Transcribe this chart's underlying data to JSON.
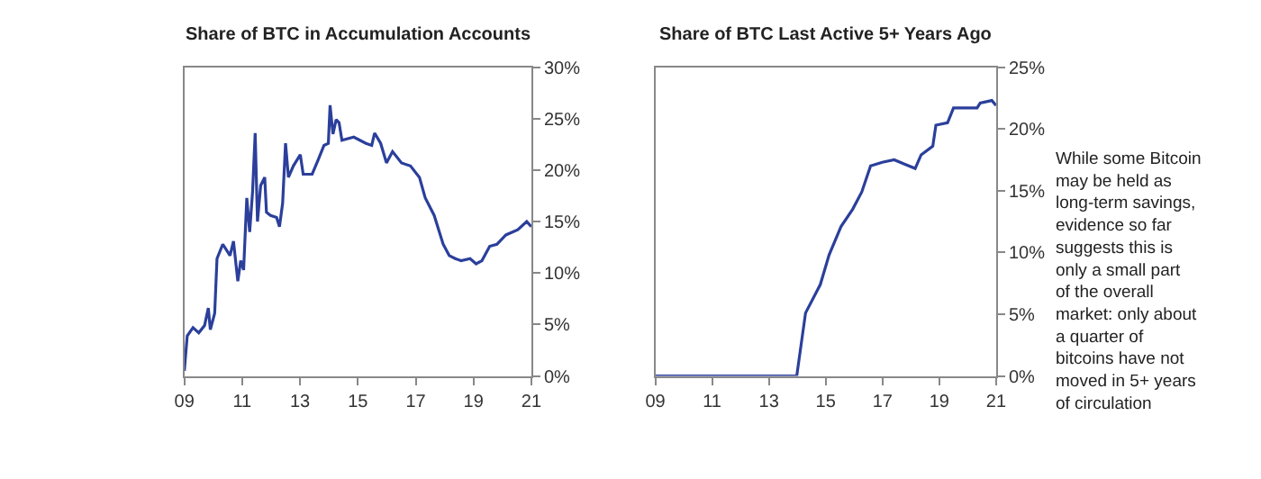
{
  "chart_data": [
    {
      "type": "line",
      "title": "Share of BTC in Accumulation Accounts",
      "x": [
        2009.0,
        2009.1,
        2009.3,
        2009.5,
        2009.7,
        2009.83,
        2009.9,
        2010.05,
        2010.13,
        2010.33,
        2010.58,
        2010.7,
        2010.85,
        2010.95,
        2011.05,
        2011.16,
        2011.26,
        2011.36,
        2011.45,
        2011.53,
        2011.64,
        2011.78,
        2011.84,
        2011.98,
        2012.19,
        2012.29,
        2012.4,
        2012.5,
        2012.6,
        2012.77,
        2013.01,
        2013.11,
        2013.42,
        2013.63,
        2013.83,
        2013.98,
        2014.04,
        2014.14,
        2014.25,
        2014.35,
        2014.45,
        2014.86,
        2015.28,
        2015.48,
        2015.58,
        2015.79,
        2015.99,
        2016.2,
        2016.51,
        2016.82,
        2017.13,
        2017.33,
        2017.64,
        2017.95,
        2018.16,
        2018.37,
        2018.57,
        2018.88,
        2019.09,
        2019.29,
        2019.56,
        2019.81,
        2020.12,
        2020.53,
        2020.84,
        2021.0
      ],
      "series": [
        {
          "color": "#2b3f9b",
          "values": [
            0.5,
            3.9,
            4.7,
            4.2,
            4.9,
            6.6,
            4.5,
            6.1,
            11.4,
            12.8,
            11.7,
            13.1,
            9.2,
            11.2,
            10.3,
            17.3,
            14.0,
            17.9,
            23.6,
            15.0,
            18.5,
            19.3,
            15.9,
            15.6,
            15.4,
            14.5,
            16.8,
            22.6,
            19.3,
            20.4,
            21.5,
            19.6,
            19.6,
            21.0,
            22.4,
            22.6,
            26.3,
            23.5,
            24.9,
            24.6,
            22.9,
            23.2,
            22.6,
            22.4,
            23.6,
            22.6,
            20.7,
            21.8,
            20.7,
            20.4,
            19.3,
            17.3,
            15.6,
            12.8,
            11.7,
            11.4,
            11.2,
            11.4,
            10.9,
            11.2,
            12.6,
            12.8,
            13.7,
            14.2,
            15.0,
            14.5
          ]
        }
      ],
      "xlim": [
        2009,
        2021
      ],
      "xticks": [
        {
          "value": 2009,
          "label": "09"
        },
        {
          "value": 2011,
          "label": "11"
        },
        {
          "value": 2013,
          "label": "13"
        },
        {
          "value": 2015,
          "label": "15"
        },
        {
          "value": 2017,
          "label": "17"
        },
        {
          "value": 2019,
          "label": "19"
        },
        {
          "value": 2021,
          "label": "21"
        }
      ],
      "ylim": [
        0,
        30
      ],
      "yticks": [
        {
          "value": 0,
          "label": "0%"
        },
        {
          "value": 5,
          "label": "5%"
        },
        {
          "value": 10,
          "label": "10%"
        },
        {
          "value": 15,
          "label": "15%"
        },
        {
          "value": 20,
          "label": "20%"
        },
        {
          "value": 25,
          "label": "25%"
        },
        {
          "value": 30,
          "label": "30%"
        }
      ]
    },
    {
      "type": "line",
      "title": "Share of BTC Last Active 5+ Years Ago",
      "x": [
        2009,
        2013.98,
        2014.29,
        2014.81,
        2015.12,
        2015.54,
        2015.95,
        2016.27,
        2016.58,
        2016.99,
        2017.41,
        2017.83,
        2018.15,
        2018.36,
        2018.77,
        2018.88,
        2019.29,
        2019.5,
        2020.33,
        2020.44,
        2020.85,
        2021
      ],
      "series": [
        {
          "color": "#2b3f9b",
          "values": [
            0,
            0,
            5.1,
            7.4,
            9.8,
            12.1,
            13.5,
            14.9,
            17.0,
            17.3,
            17.5,
            17.1,
            16.8,
            17.9,
            18.6,
            20.3,
            20.5,
            21.7,
            21.7,
            22.1,
            22.3,
            21.9
          ]
        }
      ],
      "xlim": [
        2009,
        2021
      ],
      "xticks": [
        {
          "value": 2009,
          "label": "09"
        },
        {
          "value": 2011,
          "label": "11"
        },
        {
          "value": 2013,
          "label": "13"
        },
        {
          "value": 2015,
          "label": "15"
        },
        {
          "value": 2017,
          "label": "17"
        },
        {
          "value": 2019,
          "label": "19"
        },
        {
          "value": 2021,
          "label": "21"
        }
      ],
      "ylim": [
        0,
        25
      ],
      "yticks": [
        {
          "value": 0,
          "label": "0%"
        },
        {
          "value": 5,
          "label": "5%"
        },
        {
          "value": 10,
          "label": "10%"
        },
        {
          "value": 15,
          "label": "15%"
        },
        {
          "value": 20,
          "label": "20%"
        },
        {
          "value": 25,
          "label": "25%"
        }
      ],
      "annotations": [
        "While some Bitcoin may be held as long-term savings, evidence so far suggests this is only a small part of the overall market: only about a quarter of bitcoins have not moved in 5+ years of circulation"
      ]
    }
  ]
}
